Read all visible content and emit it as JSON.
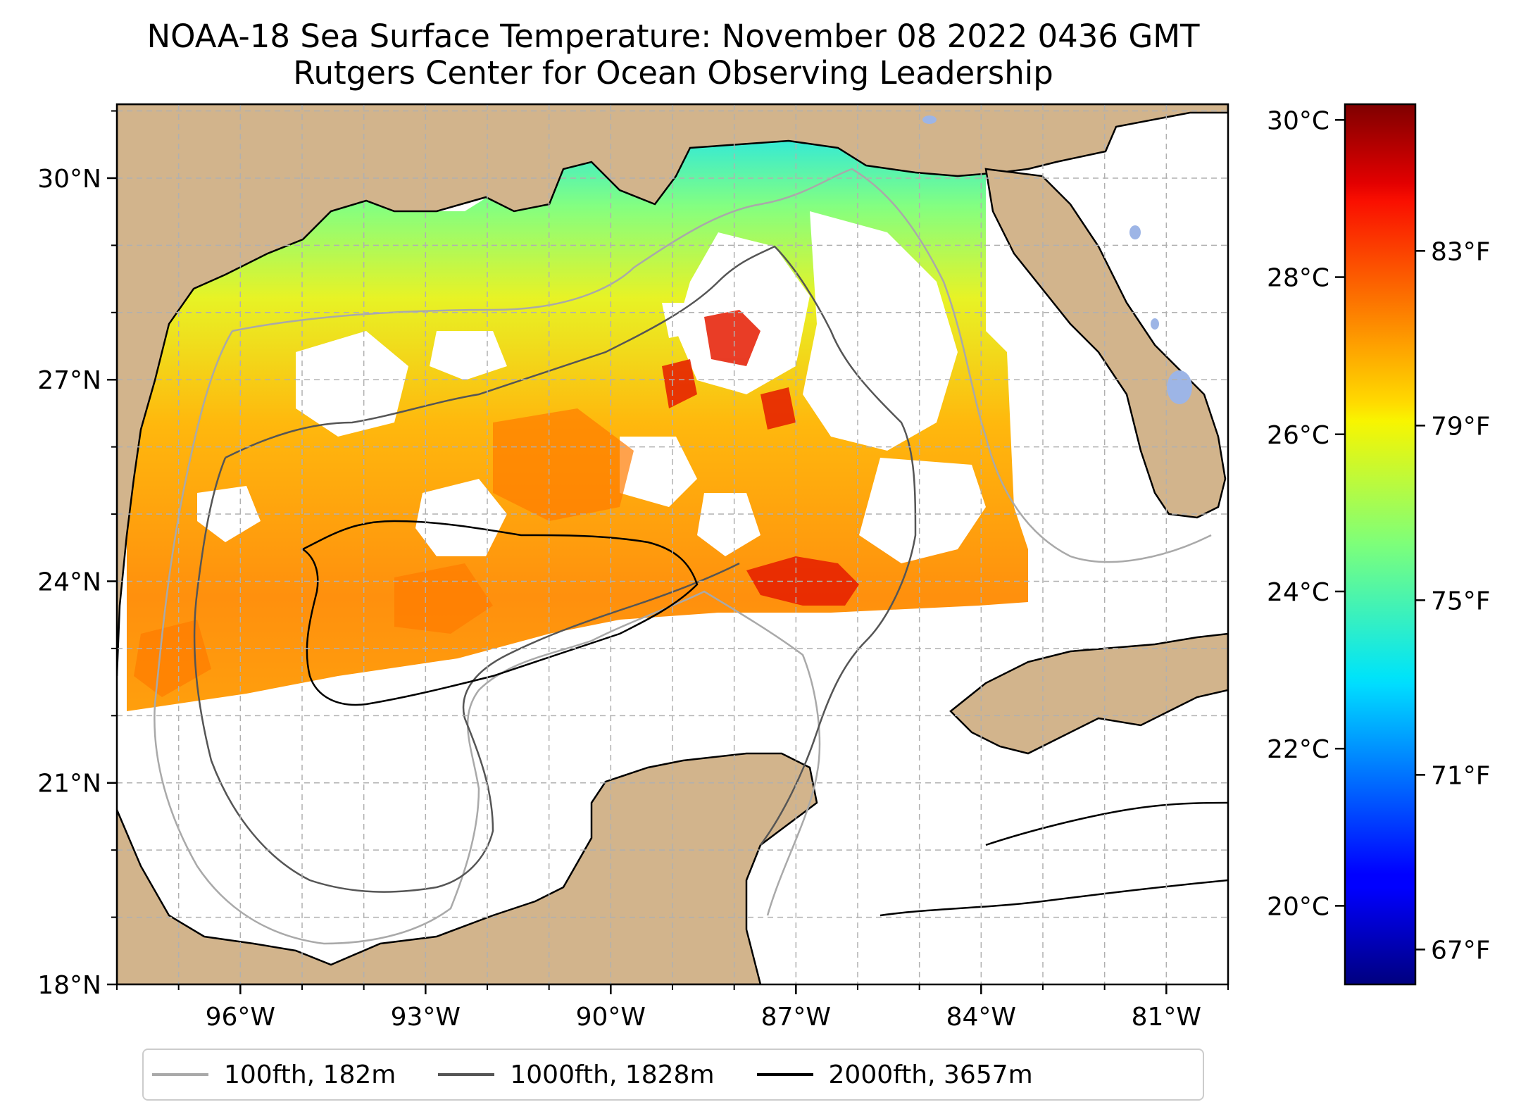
{
  "title": {
    "line1": "NOAA-18 Sea Surface Temperature: November 08 2022 0436 GMT",
    "line2": "Rutgers Center for Ocean Observing Leadership"
  },
  "map": {
    "extent": {
      "lon_min": -98.0,
      "lon_max": -80.0,
      "lat_min": 18.0,
      "lat_max": 31.1
    },
    "lat_ticks": [
      {
        "value": 30,
        "label": "30°N"
      },
      {
        "value": 27,
        "label": "27°N"
      },
      {
        "value": 24,
        "label": "24°N"
      },
      {
        "value": 21,
        "label": "21°N"
      },
      {
        "value": 18,
        "label": "18°N"
      }
    ],
    "lon_ticks": [
      {
        "value": -96,
        "label": "96°W"
      },
      {
        "value": -93,
        "label": "93°W"
      },
      {
        "value": -90,
        "label": "90°W"
      },
      {
        "value": -87,
        "label": "87°W"
      },
      {
        "value": -84,
        "label": "84°W"
      },
      {
        "value": -81,
        "label": "81°W"
      }
    ],
    "grid": true,
    "colors": {
      "land": "#d2b48c",
      "lake": "#9db5e6",
      "ocean_no_data": "#ffffff",
      "grid": "#b0b0b0"
    }
  },
  "colorbar": {
    "colormap": "jet",
    "range_c": [
      19.0,
      30.2
    ],
    "celsius_ticks": [
      {
        "value": 30,
        "label": "30°C"
      },
      {
        "value": 28,
        "label": "28°C"
      },
      {
        "value": 26,
        "label": "26°C"
      },
      {
        "value": 24,
        "label": "24°C"
      },
      {
        "value": 22,
        "label": "22°C"
      },
      {
        "value": 20,
        "label": "20°C"
      }
    ],
    "fahrenheit_ticks": [
      {
        "value": 83,
        "label": "83°F"
      },
      {
        "value": 79,
        "label": "79°F"
      },
      {
        "value": 75,
        "label": "75°F"
      },
      {
        "value": 71,
        "label": "71°F"
      },
      {
        "value": 67,
        "label": "67°F"
      }
    ]
  },
  "legend": {
    "items": [
      {
        "label": "100fth, 182m",
        "color": "#a9a9a9"
      },
      {
        "label": "1000fth, 1828m",
        "color": "#555555"
      },
      {
        "label": "2000fth, 3657m",
        "color": "#000000"
      }
    ]
  }
}
